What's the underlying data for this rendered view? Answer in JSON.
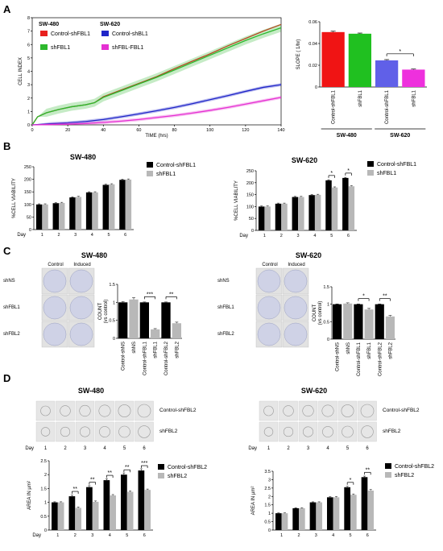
{
  "panels": {
    "A": {
      "label": "A",
      "curve_chart": {
        "type": "line",
        "xlabel": "TIME (hrs)",
        "ylabel": "CELL INDEX",
        "xlim": [
          0,
          140
        ],
        "ylim": [
          0,
          8
        ],
        "xticks": [
          0,
          20,
          40,
          60,
          80,
          100,
          120,
          140
        ],
        "yticks": [
          0,
          1,
          2,
          3,
          4,
          5,
          6,
          7,
          8
        ],
        "legend_groups": [
          "SW-480",
          "SW-620"
        ],
        "series": [
          {
            "name": "Control-shFBL1",
            "group": "SW-480",
            "color": "#e8201e",
            "points": [
              [
                0,
                0
              ],
              [
                3,
                0.6
              ],
              [
                8,
                0.9
              ],
              [
                15,
                1.15
              ],
              [
                22,
                1.35
              ],
              [
                30,
                1.5
              ],
              [
                35,
                1.65
              ],
              [
                40,
                2.1
              ],
              [
                50,
                2.6
              ],
              [
                60,
                3.1
              ],
              [
                70,
                3.6
              ],
              [
                80,
                4.2
              ],
              [
                90,
                4.75
              ],
              [
                100,
                5.3
              ],
              [
                110,
                5.9
              ],
              [
                120,
                6.45
              ],
              [
                130,
                7.0
              ],
              [
                140,
                7.5
              ]
            ]
          },
          {
            "name": "shFBL1",
            "group": "SW-480",
            "color": "#2db82d",
            "band": 0.3,
            "points": [
              [
                0,
                0
              ],
              [
                3,
                0.6
              ],
              [
                8,
                0.9
              ],
              [
                15,
                1.15
              ],
              [
                22,
                1.35
              ],
              [
                30,
                1.5
              ],
              [
                35,
                1.65
              ],
              [
                40,
                2.05
              ],
              [
                50,
                2.55
              ],
              [
                60,
                3.05
              ],
              [
                70,
                3.55
              ],
              [
                80,
                4.1
              ],
              [
                90,
                4.65
              ],
              [
                100,
                5.2
              ],
              [
                110,
                5.75
              ],
              [
                120,
                6.3
              ],
              [
                130,
                6.8
              ],
              [
                140,
                7.25
              ]
            ]
          },
          {
            "name": "Control-shBL1",
            "group": "SW-620",
            "color": "#1f25c8",
            "band": 0.12,
            "points": [
              [
                0,
                0
              ],
              [
                10,
                0.08
              ],
              [
                20,
                0.15
              ],
              [
                30,
                0.25
              ],
              [
                40,
                0.4
              ],
              [
                50,
                0.6
              ],
              [
                60,
                0.82
              ],
              [
                70,
                1.05
              ],
              [
                80,
                1.3
              ],
              [
                90,
                1.58
              ],
              [
                100,
                1.88
              ],
              [
                110,
                2.18
              ],
              [
                120,
                2.5
              ],
              [
                130,
                2.8
              ],
              [
                140,
                3.0
              ]
            ]
          },
          {
            "name": "shFBL-FBL1",
            "group": "SW-620",
            "color": "#e530d2",
            "band": 0.12,
            "points": [
              [
                0,
                0
              ],
              [
                10,
                0.02
              ],
              [
                20,
                0.05
              ],
              [
                30,
                0.1
              ],
              [
                40,
                0.18
              ],
              [
                50,
                0.28
              ],
              [
                60,
                0.4
              ],
              [
                70,
                0.55
              ],
              [
                80,
                0.7
              ],
              [
                90,
                0.88
              ],
              [
                100,
                1.08
              ],
              [
                110,
                1.3
              ],
              [
                120,
                1.55
              ],
              [
                130,
                1.8
              ],
              [
                140,
                2.05
              ]
            ]
          }
        ]
      },
      "slope_chart": {
        "type": "bar",
        "ylabel": "SLOPE ( 1/hr)",
        "ylim": [
          0,
          0.06
        ],
        "yticks": [
          0,
          0.02,
          0.04,
          0.06
        ],
        "ytick_labels": [
          "0",
          "0.02",
          "0.04",
          "0.06"
        ],
        "categories": [
          "Control-shFBL1",
          "shFBL1",
          "Control-shFBL1",
          "shFBL1"
        ],
        "values": [
          0.0505,
          0.049,
          0.0245,
          0.016
        ],
        "errors": [
          0.0008,
          0.0006,
          0.0007,
          0.0005
        ],
        "colors": [
          "#f01414",
          "#20c020",
          "#6060e8",
          "#ee30dd"
        ],
        "groups": [
          {
            "label": "SW-480",
            "from": 0,
            "to": 1
          },
          {
            "label": "SW-620",
            "from": 2,
            "to": 3
          }
        ],
        "sig": [
          {
            "a": 2,
            "b": 3,
            "text": "*"
          }
        ]
      }
    },
    "B": {
      "label": "B",
      "charts": [
        {
          "title": "SW-480",
          "type": "bar",
          "ylabel": "%CELL VIABILITY",
          "xlabel": "Day",
          "ylim": [
            0,
            250
          ],
          "yticks": [
            0,
            50,
            100,
            150,
            200,
            250
          ],
          "categories": [
            "1",
            "2",
            "3",
            "4",
            "5",
            "6"
          ],
          "series": [
            {
              "name": "Control-shFBL1",
              "color": "#000000",
              "values": [
                100,
                105,
                128,
                148,
                178,
                198
              ]
            },
            {
              "name": "shFBL1",
              "color": "#b8b8b8",
              "values": [
                100,
                106,
                130,
                148,
                180,
                199
              ]
            }
          ],
          "sig": []
        },
        {
          "title": "SW-620",
          "type": "bar",
          "ylabel": "%CELL VIABILITY",
          "xlabel": "Day",
          "ylim": [
            0,
            250
          ],
          "yticks": [
            0,
            50,
            100,
            150,
            200,
            250
          ],
          "categories": [
            "1",
            "2",
            "3",
            "4",
            "5",
            "6"
          ],
          "series": [
            {
              "name": "Control-shFBL1",
              "color": "#000000",
              "values": [
                100,
                112,
                140,
                148,
                210,
                220
              ]
            },
            {
              "name": "shFBL1",
              "color": "#b8b8b8",
              "values": [
                100,
                112,
                140,
                149,
                180,
                185
              ]
            }
          ],
          "sig": [
            {
              "index": 4,
              "text": "*"
            },
            {
              "index": 5,
              "text": "*"
            }
          ]
        }
      ]
    },
    "C": {
      "label": "C",
      "plates": [
        {
          "title": "SW-480",
          "col_labels": [
            "Control",
            "Induced"
          ],
          "row_labels": [
            "shNS",
            "shFBL1",
            "shFBL2"
          ]
        },
        {
          "title": "SW-620",
          "col_labels": [
            "Control",
            "Induced"
          ],
          "row_labels": [
            "shNS",
            "shFBL1",
            "shFBL2"
          ]
        }
      ],
      "charts": [
        {
          "type": "bar",
          "ylabel": "COUNT",
          "ylabel2": "(vs control)",
          "ylim": [
            0,
            1.5
          ],
          "yticks": [
            0,
            0.5,
            1,
            1.5
          ],
          "ytick_labels": [
            "0",
            "0.5",
            "1",
            "1.5"
          ],
          "categories": [
            "Control-shNS",
            "shNS",
            "Control-shFBL1",
            "shFBL1",
            "Control-shFBL2",
            "shFBL2"
          ],
          "values": [
            1.0,
            1.08,
            1.0,
            0.25,
            1.0,
            0.42
          ],
          "errors": [
            0.02,
            0.05,
            0.01,
            0.02,
            0.01,
            0.03
          ],
          "colors": [
            "#000000",
            "#b8b8b8",
            "#000000",
            "#b8b8b8",
            "#000000",
            "#b8b8b8"
          ],
          "sig": [
            {
              "a": 2,
              "b": 3,
              "text": "***"
            },
            {
              "a": 4,
              "b": 5,
              "text": "**"
            }
          ]
        },
        {
          "type": "bar",
          "ylabel": "COUNT",
          "ylabel2": "(vs control)",
          "ylim": [
            0,
            1.5
          ],
          "yticks": [
            0,
            0.5,
            1,
            1.5
          ],
          "ytick_labels": [
            "0",
            "0.5",
            "1",
            "1.5"
          ],
          "categories": [
            "Control-shNS",
            "shNS",
            "Control-shFBL1",
            "shFBL1",
            "Control-shFBL2",
            "shFBL2"
          ],
          "values": [
            1.0,
            1.02,
            1.0,
            0.85,
            1.0,
            0.65
          ],
          "errors": [
            0.01,
            0.02,
            0.01,
            0.03,
            0.01,
            0.03
          ],
          "colors": [
            "#000000",
            "#b8b8b8",
            "#000000",
            "#b8b8b8",
            "#000000",
            "#b8b8b8"
          ],
          "sig": [
            {
              "a": 2,
              "b": 3,
              "text": "*"
            },
            {
              "a": 4,
              "b": 5,
              "text": "**"
            }
          ]
        }
      ]
    },
    "D": {
      "label": "D",
      "strips": [
        {
          "title": "SW-480",
          "row_labels": [
            "Control-shFBL2",
            "shFBL2"
          ],
          "day_label": "Day",
          "days": [
            "1",
            "2",
            "3",
            "4",
            "5",
            "6"
          ]
        },
        {
          "title": "SW-620",
          "row_labels": [
            "Control-shFBL2",
            "shFBL2"
          ],
          "day_label": "Day",
          "days": [
            "1",
            "2",
            "3",
            "4",
            "5",
            "6"
          ]
        }
      ],
      "charts": [
        {
          "type": "bar",
          "ylabel": "AREA IN µm²",
          "xlabel": "Day",
          "ylim": [
            0,
            2.5
          ],
          "yticks": [
            0,
            0.5,
            1,
            1.5,
            2,
            2.5
          ],
          "ytick_labels": [
            "0",
            "0.5",
            "1",
            "1.5",
            "2",
            "2.5"
          ],
          "categories": [
            "1",
            "2",
            "3",
            "4",
            "5",
            "6"
          ],
          "series": [
            {
              "name": "Control-shFBL2",
              "color": "#000000",
              "values": [
                1.0,
                1.22,
                1.55,
                1.8,
                2.0,
                2.15
              ],
              "errors": [
                0.02,
                0.04,
                0.05,
                0.05,
                0.06,
                0.06
              ]
            },
            {
              "name": "shFBL2",
              "color": "#b8b8b8",
              "values": [
                1.0,
                0.8,
                1.02,
                1.25,
                1.38,
                1.45
              ],
              "errors": [
                0.02,
                0.03,
                0.03,
                0.03,
                0.03,
                0.03
              ]
            }
          ],
          "sig": [
            {
              "index": 1,
              "text": "**"
            },
            {
              "index": 2,
              "text": "**"
            },
            {
              "index": 3,
              "text": "**"
            },
            {
              "index": 4,
              "text": "**"
            },
            {
              "index": 5,
              "text": "***"
            }
          ]
        },
        {
          "type": "bar",
          "ylabel": "AREA IN µm²",
          "xlabel": "",
          "ylim": [
            0,
            3.5
          ],
          "yticks": [
            0,
            0.5,
            1,
            1.5,
            2,
            2.5,
            3,
            3.5
          ],
          "ytick_labels": [
            "0",
            "0.5",
            "1",
            "1.5",
            "2",
            "2.5",
            "3",
            "3.5"
          ],
          "categories": [
            "1",
            "2",
            "3",
            "4",
            "5",
            "6"
          ],
          "series": [
            {
              "name": "Control-shFBL2",
              "color": "#000000",
              "values": [
                1.0,
                1.3,
                1.65,
                1.95,
                2.55,
                3.15
              ],
              "errors": [
                0.02,
                0.03,
                0.03,
                0.04,
                0.05,
                0.06
              ]
            },
            {
              "name": "shFBL2",
              "color": "#b8b8b8",
              "values": [
                1.0,
                1.3,
                1.65,
                1.95,
                2.1,
                2.35
              ],
              "errors": [
                0.02,
                0.03,
                0.03,
                0.04,
                0.05,
                0.06
              ]
            }
          ],
          "sig": [
            {
              "index": 4,
              "text": "*"
            },
            {
              "index": 5,
              "text": "**"
            }
          ]
        }
      ]
    }
  }
}
